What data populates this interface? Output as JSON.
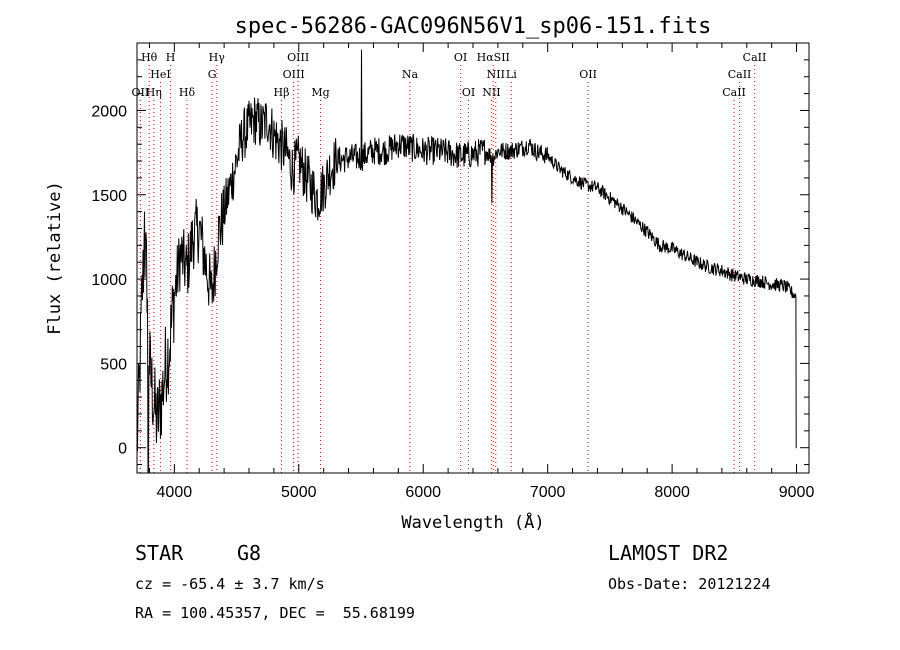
{
  "chart_data": {
    "type": "line",
    "title": "spec-56286-GAC096N56V1_sp06-151.fits",
    "xlabel": "Wavelength (Å)",
    "ylabel": "Flux (relative)",
    "xlim": [
      3700,
      9100
    ],
    "ylim": [
      -150,
      2400
    ],
    "xticks": [
      4000,
      5000,
      6000,
      7000,
      8000,
      9000
    ],
    "yticks": [
      0,
      500,
      1000,
      1500,
      2000
    ],
    "grid": false,
    "line_color": "#000000",
    "marker_color": "#ff0000",
    "spectrum_anchors": {
      "x": [
        3700,
        3720,
        3740,
        3760,
        3780,
        3800,
        3830,
        3860,
        3900,
        3930,
        3960,
        4000,
        4050,
        4100,
        4150,
        4200,
        4250,
        4300,
        4350,
        4400,
        4450,
        4500,
        4550,
        4600,
        4650,
        4700,
        4750,
        4800,
        4850,
        4900,
        4950,
        5000,
        5050,
        5100,
        5150,
        5200,
        5250,
        5300,
        5400,
        5500,
        5600,
        5700,
        5800,
        5900,
        6000,
        6100,
        6200,
        6300,
        6400,
        6500,
        6560,
        6600,
        6700,
        6800,
        6850,
        6900,
        7000,
        7100,
        7200,
        7300,
        7400,
        7500,
        7600,
        7700,
        7800,
        7900,
        8000,
        8100,
        8200,
        8300,
        8400,
        8500,
        8600,
        8700,
        8800,
        8900,
        8950,
        8990,
        9000
      ],
      "y": [
        0,
        400,
        900,
        1200,
        1000,
        500,
        300,
        150,
        300,
        500,
        600,
        900,
        1150,
        1050,
        1250,
        1300,
        1100,
        900,
        1250,
        1400,
        1550,
        1700,
        1850,
        1900,
        1950,
        1900,
        1950,
        1850,
        1800,
        1750,
        1650,
        1700,
        1620,
        1550,
        1480,
        1550,
        1650,
        1700,
        1720,
        1720,
        1760,
        1760,
        1800,
        1780,
        1760,
        1760,
        1750,
        1730,
        1740,
        1760,
        1720,
        1760,
        1760,
        1780,
        1800,
        1760,
        1730,
        1650,
        1600,
        1560,
        1540,
        1480,
        1420,
        1350,
        1280,
        1200,
        1180,
        1140,
        1100,
        1070,
        1050,
        1020,
        1000,
        990,
        970,
        960,
        930,
        900,
        0
      ]
    },
    "spikes": [
      {
        "x": 5505,
        "y": 2360
      },
      {
        "x": 6553,
        "y": 1450
      },
      {
        "x": 3790,
        "y": -150
      },
      {
        "x": 3760,
        "y": 1400
      }
    ],
    "line_markers": [
      {
        "label": "Hθ",
        "wavelength": 3798,
        "row": 0
      },
      {
        "label": "H",
        "wavelength": 3970,
        "row": 0
      },
      {
        "label": "Hγ",
        "wavelength": 4341,
        "row": 0
      },
      {
        "label": "OIII",
        "wavelength": 4995,
        "row": 0
      },
      {
        "label": "OI",
        "wavelength": 6300,
        "row": 0
      },
      {
        "label": "HαSII",
        "wavelength": 6563,
        "row": 0
      },
      {
        "label": "CaII",
        "wavelength": 8662,
        "row": 0
      },
      {
        "label": "HeI",
        "wavelength": 3889,
        "row": 1
      },
      {
        "label": "G",
        "wavelength": 4304,
        "row": 1
      },
      {
        "label": "OIII",
        "wavelength": 4959,
        "row": 1
      },
      {
        "label": "Na",
        "wavelength": 5893,
        "row": 1
      },
      {
        "label": "NII",
        "wavelength": 6583,
        "row": 1
      },
      {
        "label": "Li",
        "wavelength": 6708,
        "row": 1
      },
      {
        "label": "OII",
        "wavelength": 7325,
        "row": 1
      },
      {
        "label": "CaII",
        "wavelength": 8542,
        "row": 1
      },
      {
        "label": "OII",
        "wavelength": 3727,
        "row": 2
      },
      {
        "label": "Hη",
        "wavelength": 3835,
        "row": 2
      },
      {
        "label": "Hδ",
        "wavelength": 4102,
        "row": 2
      },
      {
        "label": "Hβ",
        "wavelength": 4861,
        "row": 2
      },
      {
        "label": "Mg",
        "wavelength": 5175,
        "row": 2
      },
      {
        "label": "OI",
        "wavelength": 6364,
        "row": 2
      },
      {
        "label": "NII",
        "wavelength": 6548,
        "row": 2
      },
      {
        "label": "CaII",
        "wavelength": 8498,
        "row": 2
      }
    ]
  },
  "info": {
    "object_class": "STAR",
    "subclass": "G8",
    "cz": "cz = -65.4 ± 3.7 km/s",
    "coords": "RA = 100.45357, DEC =  55.68199",
    "survey": "LAMOST DR2",
    "obs_date": "Obs-Date: 20121224"
  }
}
